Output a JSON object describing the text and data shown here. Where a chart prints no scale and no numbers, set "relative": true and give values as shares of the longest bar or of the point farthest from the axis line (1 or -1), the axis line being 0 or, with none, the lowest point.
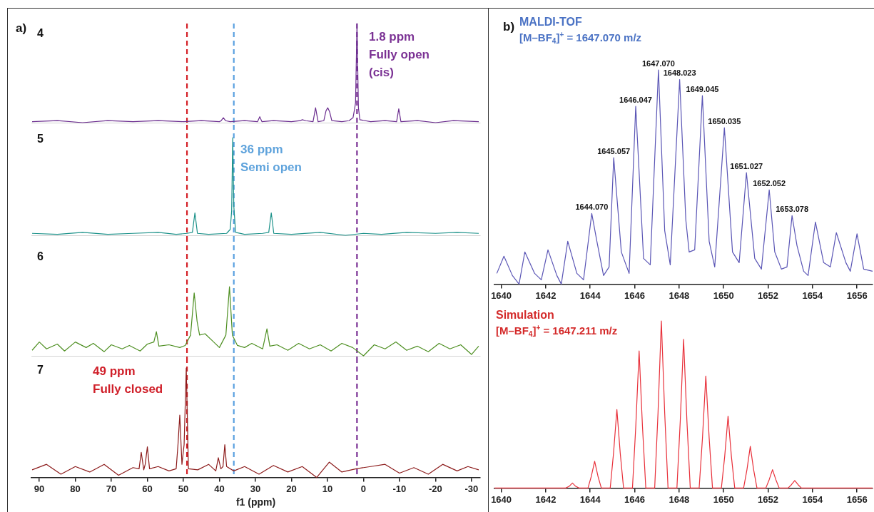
{
  "chart_data": [
    {
      "type": "line",
      "title": "4",
      "annotations": [
        "a)",
        "1.8 ppm\nFully open\n(cis)"
      ],
      "relative": true,
      "tick_labels": false,
      "xlim": [
        92.2,
        -32.4
      ],
      "x": [
        92,
        85,
        78,
        71,
        64,
        57,
        50,
        45,
        40,
        39.5,
        38.9,
        38.3,
        37,
        33,
        29.4,
        28.8,
        28.2,
        25,
        20,
        17.5,
        17,
        16,
        14,
        13.3,
        12.6,
        11,
        10.4,
        9.9,
        9.4,
        8.8,
        6,
        4,
        2.9,
        2.5,
        2.2,
        1.8,
        1.4,
        1,
        -2,
        -6,
        -9.2,
        -9.8,
        -10.4,
        -15,
        -20,
        -25,
        -32
      ],
      "series": [
        {
          "color": "#6b2d8f",
          "values": [
            0.01,
            0.02,
            0,
            0.02,
            0.01,
            0.02,
            0.01,
            0.02,
            0.01,
            0.02,
            0.05,
            0.02,
            0.01,
            0.02,
            0.01,
            0.06,
            0.01,
            0.02,
            0.01,
            0.02,
            0.03,
            0.02,
            0.01,
            0.15,
            0.01,
            0.02,
            0.12,
            0.15,
            0.11,
            0.02,
            0.01,
            0.02,
            0.05,
            0.13,
            0.2,
            1.0,
            0.15,
            0.03,
            0.01,
            0.02,
            0.01,
            0.14,
            0.01,
            0.02,
            0,
            0.02,
            0.01
          ]
        }
      ],
      "ref_lines": [
        {
          "axis": "x",
          "value": 49,
          "color": "#d42027",
          "line_style": "dashed"
        },
        {
          "axis": "x",
          "value": 36,
          "color": "#5aa0e0",
          "line_style": "dashed"
        },
        {
          "axis": "x",
          "value": 1.8,
          "color": "#7b3294",
          "line_style": "dashed"
        }
      ]
    },
    {
      "type": "line",
      "title": "5",
      "annotations": [
        "36 ppm\nSemi open"
      ],
      "relative": true,
      "tick_labels": false,
      "xlim": [
        92.2,
        -32.4
      ],
      "x": [
        92,
        85,
        78,
        71,
        64,
        57,
        52,
        49,
        47.5,
        46.8,
        46.1,
        43,
        38,
        37,
        36.6,
        36.3,
        36,
        35.5,
        33,
        28,
        26.3,
        25.6,
        24.9,
        20,
        12,
        5,
        0,
        -5,
        -12,
        -20,
        -26,
        -32
      ],
      "series": [
        {
          "color": "#1b9189",
          "values": [
            0.02,
            0.01,
            0.03,
            0.01,
            0.02,
            0.03,
            0.01,
            0.02,
            0.03,
            0.23,
            0.02,
            0.01,
            0.02,
            0.06,
            0.25,
            1.0,
            0.3,
            0.03,
            0.01,
            0.02,
            0.03,
            0.23,
            0.02,
            0.01,
            0.03,
            0,
            0.02,
            0.01,
            0.03,
            0.02,
            0.03,
            0.02
          ]
        }
      ],
      "ref_lines": [
        {
          "axis": "x",
          "value": 49,
          "color": "#d42027",
          "line_style": "dashed"
        },
        {
          "axis": "x",
          "value": 36,
          "color": "#5aa0e0",
          "line_style": "dashed"
        },
        {
          "axis": "x",
          "value": 1.8,
          "color": "#7b3294",
          "line_style": "dashed"
        }
      ]
    },
    {
      "type": "line",
      "title": "6",
      "relative": true,
      "tick_labels": false,
      "xlim": [
        92.2,
        -32.4
      ],
      "x": [
        92,
        90,
        88,
        85,
        83,
        80,
        77,
        75,
        72,
        70,
        67,
        65,
        62,
        60,
        58.2,
        57.5,
        56.8,
        54,
        51,
        49.5,
        48,
        47,
        46.2,
        45.5,
        44,
        42,
        40,
        38.2,
        37.2,
        36.4,
        35,
        33,
        31,
        28,
        26.8,
        26,
        24,
        21,
        18,
        15,
        12,
        9,
        6,
        3,
        0,
        -3,
        -6,
        -9,
        -12,
        -15,
        -18,
        -21,
        -24,
        -27,
        -30,
        -32
      ],
      "series": [
        {
          "color": "#4e8f22",
          "values": [
            0.08,
            0.2,
            0.1,
            0.17,
            0.07,
            0.2,
            0.12,
            0.18,
            0.06,
            0.16,
            0.1,
            0.15,
            0.07,
            0.17,
            0.2,
            0.35,
            0.14,
            0.16,
            0.12,
            0.15,
            0.3,
            0.91,
            0.5,
            0.3,
            0.32,
            0.22,
            0.12,
            0.3,
            1.0,
            0.3,
            0.15,
            0.12,
            0.18,
            0.1,
            0.39,
            0.14,
            0.16,
            0.08,
            0.18,
            0.1,
            0.16,
            0.07,
            0.18,
            0.12,
            0,
            0.16,
            0.1,
            0.2,
            0.08,
            0.14,
            0.06,
            0.18,
            0.1,
            0.16,
            0.02,
            0.14
          ]
        }
      ],
      "ref_lines": [
        {
          "axis": "x",
          "value": 49,
          "color": "#d42027",
          "line_style": "dashed"
        },
        {
          "axis": "x",
          "value": 36,
          "color": "#5aa0e0",
          "line_style": "dashed"
        },
        {
          "axis": "x",
          "value": 1.8,
          "color": "#7b3294",
          "line_style": "dashed"
        }
      ]
    },
    {
      "type": "line",
      "title": "7",
      "xlabel": "f1 (ppm)",
      "annotations": [
        "49 ppm\nFully closed"
      ],
      "relative": true,
      "tick_labels": "x",
      "xlim": [
        92.2,
        -32.4
      ],
      "xticks": [
        90,
        80,
        70,
        60,
        50,
        40,
        30,
        20,
        10,
        0,
        -10,
        -20,
        -30
      ],
      "x": [
        92,
        88,
        84,
        80,
        76,
        72,
        68,
        64,
        62.3,
        61.7,
        61,
        60.6,
        60,
        59.4,
        57,
        54,
        52,
        51.5,
        51,
        50.4,
        49.8,
        49.2,
        48.6,
        46,
        43,
        41,
        40.3,
        39.6,
        39,
        38.5,
        38,
        36,
        33,
        29,
        25,
        21,
        17,
        13,
        9.5,
        6,
        2,
        -2,
        -6,
        -10,
        -14,
        -18,
        -22,
        -26,
        -29,
        -32
      ],
      "series": [
        {
          "color": "#8c1b1b",
          "values": [
            0.07,
            0.12,
            0.03,
            0.1,
            0.05,
            0.12,
            0.02,
            0.09,
            0.08,
            0.23,
            0.07,
            0.12,
            0.28,
            0.08,
            0.1,
            0.06,
            0.08,
            0.3,
            0.57,
            0.12,
            0.3,
            1.0,
            0.08,
            0.07,
            0.12,
            0.06,
            0.18,
            0.08,
            0.1,
            0.3,
            0.1,
            0.06,
            0.1,
            0.03,
            0.11,
            0.05,
            0.1,
            0,
            0.14,
            0.05,
            0.08,
            0.1,
            0.12,
            0.04,
            0.09,
            0.03,
            0.12,
            0.06,
            0.1,
            0.07
          ]
        }
      ],
      "ref_lines": [
        {
          "axis": "x",
          "value": 49,
          "color": "#d42027",
          "line_style": "dashed"
        },
        {
          "axis": "x",
          "value": 36,
          "color": "#5aa0e0",
          "line_style": "dashed"
        },
        {
          "axis": "x",
          "value": 1.8,
          "color": "#7b3294",
          "line_style": "dashed"
        }
      ]
    },
    {
      "type": "line",
      "title": "MALDI-TOF",
      "subtitle": "[M–BF$_{4}$]$^{+}$ = 1647.070 m/z",
      "annotations": [
        "b)",
        {
          "text": "1644.070",
          "x": 1644.07,
          "y": 0.33
        },
        {
          "text": "1645.057",
          "x": 1645.057,
          "y": 0.59
        },
        {
          "text": "1646.047",
          "x": 1646.047,
          "y": 0.83
        },
        {
          "text": "1647.070",
          "x": 1647.07,
          "y": 1.0
        },
        {
          "text": "1648.023",
          "x": 1648.023,
          "y": 0.955
        },
        {
          "text": "1649.045",
          "x": 1649.045,
          "y": 0.88
        },
        {
          "text": "1650.035",
          "x": 1650.035,
          "y": 0.73
        },
        {
          "text": "1651.027",
          "x": 1651.027,
          "y": 0.52
        },
        {
          "text": "1652.052",
          "x": 1652.052,
          "y": 0.44
        },
        {
          "text": "1653.078",
          "x": 1653.078,
          "y": 0.32
        }
      ],
      "relative": true,
      "tick_labels": "x",
      "xlim": [
        1639.7,
        1656.7
      ],
      "xticks": [
        1640,
        1642,
        1644,
        1646,
        1648,
        1650,
        1652,
        1654,
        1656
      ],
      "x": [
        1639.8,
        1640.12,
        1640.5,
        1640.8,
        1641.06,
        1641.5,
        1641.8,
        1642.1,
        1642.5,
        1642.7,
        1642.99,
        1643.4,
        1643.7,
        1644.07,
        1644.3,
        1644.6,
        1644.85,
        1645.057,
        1645.4,
        1645.75,
        1646.047,
        1646.4,
        1646.7,
        1647.07,
        1647.35,
        1647.6,
        1648.023,
        1648.3,
        1648.45,
        1648.7,
        1649.045,
        1649.35,
        1649.6,
        1650.035,
        1650.4,
        1650.7,
        1651.027,
        1651.4,
        1651.7,
        1652.052,
        1652.3,
        1652.6,
        1652.85,
        1653.078,
        1653.3,
        1653.6,
        1653.8,
        1654.13,
        1654.5,
        1654.8,
        1655.07,
        1655.5,
        1655.7,
        1656.0,
        1656.3,
        1656.7
      ],
      "series": [
        {
          "color": "#5a55b5",
          "values": [
            0.05,
            0.13,
            0.04,
            0,
            0.15,
            0.05,
            0.02,
            0.16,
            0.04,
            0,
            0.2,
            0.05,
            0.02,
            0.33,
            0.2,
            0.04,
            0.08,
            0.59,
            0.15,
            0.05,
            0.83,
            0.12,
            0.09,
            1.0,
            0.25,
            0.09,
            0.955,
            0.3,
            0.15,
            0.16,
            0.88,
            0.2,
            0.08,
            0.73,
            0.15,
            0.1,
            0.52,
            0.12,
            0.07,
            0.44,
            0.15,
            0.07,
            0.08,
            0.32,
            0.18,
            0.06,
            0.04,
            0.29,
            0.1,
            0.08,
            0.24,
            0.1,
            0.06,
            0.235,
            0.07,
            0.06
          ]
        }
      ]
    },
    {
      "type": "line",
      "title": "Simulation",
      "subtitle": "[M–BF$_{4}$]$^{+}$ = 1647.211 m/z",
      "relative": true,
      "tick_labels": "x",
      "xlim": [
        1639.7,
        1656.7
      ],
      "xticks": [
        1640,
        1642,
        1644,
        1646,
        1648,
        1650,
        1652,
        1654,
        1656
      ],
      "x": [
        1639.7,
        1642.9,
        1643.05,
        1643.2,
        1643.35,
        1643.5,
        1643.9,
        1644.05,
        1644.2,
        1644.35,
        1644.5,
        1644.9,
        1645.05,
        1645.2,
        1645.35,
        1645.5,
        1645.9,
        1646.05,
        1646.2,
        1646.35,
        1646.5,
        1646.9,
        1647.05,
        1647.2,
        1647.35,
        1647.5,
        1647.9,
        1648.05,
        1648.2,
        1648.35,
        1648.5,
        1648.9,
        1649.05,
        1649.2,
        1649.35,
        1649.5,
        1649.9,
        1650.05,
        1650.2,
        1650.35,
        1650.5,
        1650.9,
        1651.05,
        1651.2,
        1651.35,
        1651.5,
        1651.9,
        1652.05,
        1652.2,
        1652.35,
        1652.5,
        1652.9,
        1653.05,
        1653.2,
        1653.35,
        1653.5,
        1656.7
      ],
      "series": [
        {
          "color": "#e8303a",
          "values": [
            0,
            0,
            0.01,
            0.03,
            0.01,
            0,
            0,
            0.07,
            0.16,
            0.07,
            0,
            0,
            0.21,
            0.47,
            0.21,
            0,
            0,
            0.37,
            0.82,
            0.37,
            0,
            0,
            0.45,
            1.0,
            0.45,
            0,
            0,
            0.4,
            0.89,
            0.4,
            0,
            0,
            0.3,
            0.67,
            0.3,
            0,
            0,
            0.19,
            0.43,
            0.19,
            0,
            0,
            0.11,
            0.25,
            0.11,
            0,
            0,
            0.05,
            0.11,
            0.05,
            0,
            0,
            0.02,
            0.045,
            0.02,
            0,
            0
          ]
        }
      ]
    }
  ]
}
